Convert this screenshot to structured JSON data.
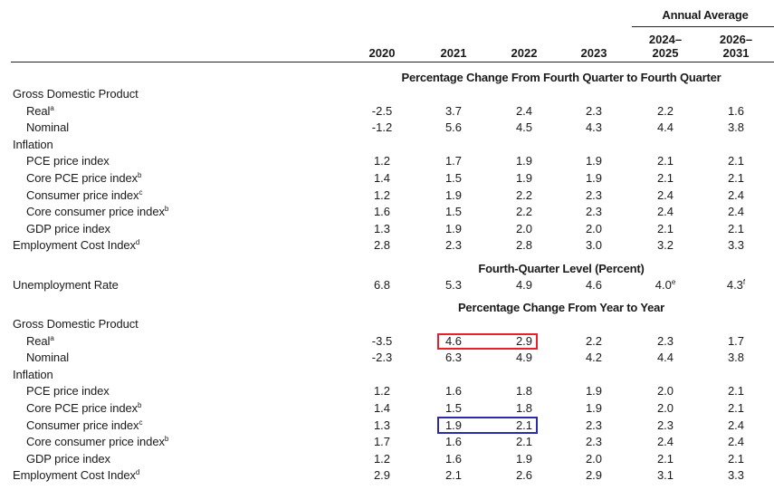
{
  "header": {
    "annual_average": "Annual Average",
    "columns": [
      "2020",
      "2021",
      "2022",
      "2023",
      "2024–\n2025",
      "2026–\n2031"
    ]
  },
  "sections": [
    {
      "title": "Percentage Change From Fourth Quarter to Fourth Quarter",
      "rows": [
        {
          "label": "Gross Domestic Product",
          "sup": "",
          "indent": false,
          "values": []
        },
        {
          "label": "Real",
          "sup": "a",
          "indent": true,
          "values": [
            "-2.5",
            "3.7",
            "2.4",
            "2.3",
            "2.2",
            "1.6"
          ]
        },
        {
          "label": "Nominal",
          "sup": "",
          "indent": true,
          "values": [
            "-1.2",
            "5.6",
            "4.5",
            "4.3",
            "4.4",
            "3.8"
          ]
        },
        {
          "label": "Inflation",
          "sup": "",
          "indent": false,
          "values": []
        },
        {
          "label": "PCE price index",
          "sup": "",
          "indent": true,
          "values": [
            "1.2",
            "1.7",
            "1.9",
            "1.9",
            "2.1",
            "2.1"
          ]
        },
        {
          "label": "Core PCE price index",
          "sup": "b",
          "indent": true,
          "values": [
            "1.4",
            "1.5",
            "1.9",
            "1.9",
            "2.1",
            "2.1"
          ]
        },
        {
          "label": "Consumer price index",
          "sup": "c",
          "indent": true,
          "values": [
            "1.2",
            "1.9",
            "2.2",
            "2.3",
            "2.4",
            "2.4"
          ]
        },
        {
          "label": "Core consumer price index",
          "sup": "b",
          "indent": true,
          "values": [
            "1.6",
            "1.5",
            "2.2",
            "2.3",
            "2.4",
            "2.4"
          ]
        },
        {
          "label": "GDP price index",
          "sup": "",
          "indent": true,
          "values": [
            "1.3",
            "1.9",
            "2.0",
            "2.0",
            "2.1",
            "2.1"
          ]
        },
        {
          "label": "Employment Cost Index",
          "sup": "d",
          "indent": false,
          "values": [
            "2.8",
            "2.3",
            "2.8",
            "3.0",
            "3.2",
            "3.3"
          ]
        }
      ]
    },
    {
      "title": "Fourth-Quarter Level (Percent)",
      "rows": [
        {
          "label": "Unemployment Rate",
          "sup": "",
          "indent": false,
          "values": [
            "6.8",
            "5.3",
            "4.9",
            "4.6",
            "4.0",
            "4.3"
          ],
          "value_sups": [
            "",
            "",
            "",
            "",
            "e",
            "f"
          ]
        }
      ]
    },
    {
      "title": "Percentage Change From Year to Year",
      "rows": [
        {
          "label": "Gross Domestic Product",
          "sup": "",
          "indent": false,
          "values": []
        },
        {
          "label": "Real",
          "sup": "a",
          "indent": true,
          "values": [
            "-3.5",
            "4.6",
            "2.9",
            "2.2",
            "2.3",
            "1.7"
          ]
        },
        {
          "label": "Nominal",
          "sup": "",
          "indent": true,
          "values": [
            "-2.3",
            "6.3",
            "4.9",
            "4.2",
            "4.4",
            "3.8"
          ]
        },
        {
          "label": "Inflation",
          "sup": "",
          "indent": false,
          "values": []
        },
        {
          "label": "PCE price index",
          "sup": "",
          "indent": true,
          "values": [
            "1.2",
            "1.6",
            "1.8",
            "1.9",
            "2.0",
            "2.1"
          ]
        },
        {
          "label": "Core PCE price index",
          "sup": "b",
          "indent": true,
          "values": [
            "1.4",
            "1.5",
            "1.8",
            "1.9",
            "2.0",
            "2.1"
          ]
        },
        {
          "label": "Consumer price index",
          "sup": "c",
          "indent": true,
          "values": [
            "1.3",
            "1.9",
            "2.1",
            "2.3",
            "2.3",
            "2.4"
          ]
        },
        {
          "label": "Core consumer price index",
          "sup": "b",
          "indent": true,
          "values": [
            "1.7",
            "1.6",
            "2.1",
            "2.3",
            "2.4",
            "2.4"
          ]
        },
        {
          "label": "GDP price index",
          "sup": "",
          "indent": true,
          "values": [
            "1.2",
            "1.6",
            "1.9",
            "2.0",
            "2.1",
            "2.1"
          ]
        },
        {
          "label": "Employment Cost Index",
          "sup": "d",
          "indent": false,
          "values": [
            "2.9",
            "2.1",
            "2.6",
            "2.9",
            "3.1",
            "3.3"
          ]
        }
      ]
    }
  ],
  "highlights": {
    "red": "#e8202a",
    "blue": "#2c2ca8"
  }
}
